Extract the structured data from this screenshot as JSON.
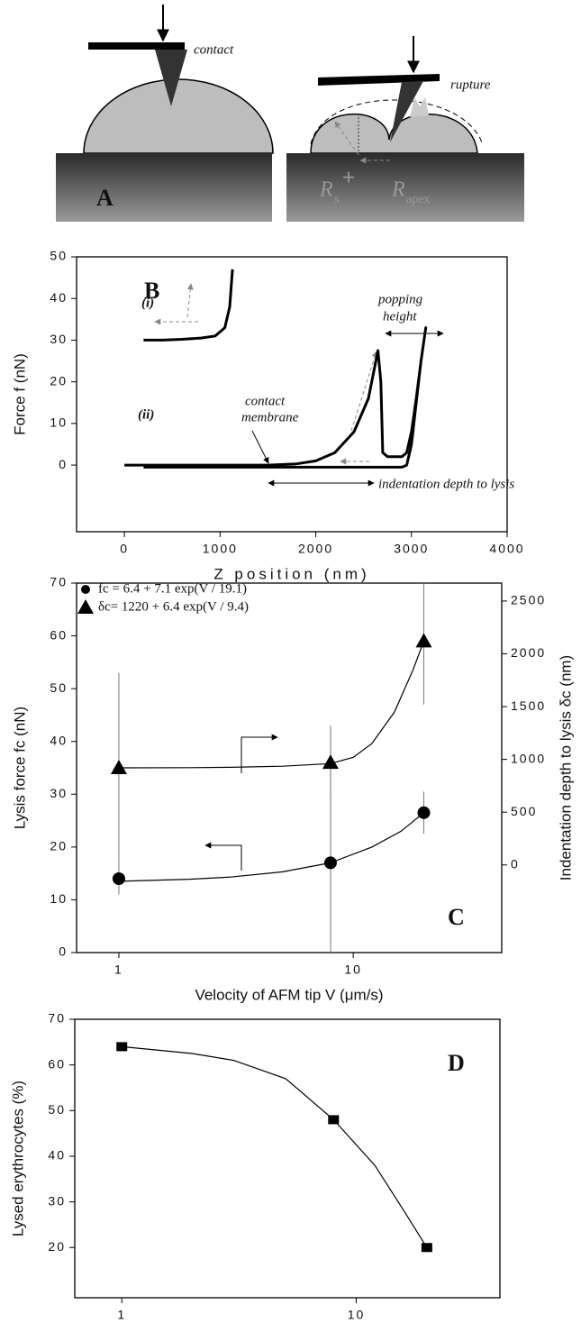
{
  "diagram": {
    "contact": "contact",
    "rupture": "rupture",
    "panel_label": "A",
    "r_s": {
      "symbol": "R",
      "subscript": "s"
    },
    "r_apex": {
      "symbol": "R",
      "subscript": "apex"
    }
  },
  "chart_data": [
    {
      "type": "line",
      "xlabel": "Z position (nm)",
      "ylabel": "Force f (nN)",
      "xlim": [
        -500,
        4000
      ],
      "ylim": [
        -16,
        50
      ],
      "xticks": [
        0,
        1000,
        2000,
        3000,
        4000
      ],
      "yticks": [
        0,
        10,
        20,
        30,
        40,
        50
      ],
      "series": [
        {
          "name": "(i)",
          "color": "#000000",
          "x": [
            200,
            400,
            600,
            800,
            950,
            1050,
            1100,
            1130
          ],
          "values": [
            30,
            30,
            30.2,
            30.5,
            31,
            33,
            38,
            47
          ]
        },
        {
          "name": "(ii)",
          "color": "#000000",
          "x": [
            0,
            500,
            1000,
            1500,
            1800,
            2000,
            2200,
            2400,
            2550,
            2650,
            2680,
            2700,
            2750,
            2900,
            2950,
            3000,
            3050,
            3100,
            3150,
            3100,
            3050,
            3000,
            2950,
            2900,
            2800,
            2500,
            1500,
            200
          ],
          "values": [
            0,
            0,
            0,
            0,
            0.3,
            1,
            3,
            8,
            16,
            27.5,
            20,
            3,
            2,
            2,
            3,
            8,
            16,
            25,
            33,
            25,
            15,
            5,
            0,
            -0.5,
            -0.5,
            -0.5,
            -0.5,
            -0.5
          ]
        }
      ],
      "annotations": [
        "B",
        "popping",
        "height",
        "contact",
        "membrane",
        "indentation depth to lysis"
      ]
    },
    {
      "type": "scatter",
      "log_x": true,
      "xlabel": "Velocity of AFM tip V (μm/s)",
      "ylabel": "Lysis force fc (nN)",
      "y2label": "Indentation depth to lysis δc (nm)",
      "xlim": [
        0.66,
        43
      ],
      "ylim": [
        0,
        70
      ],
      "y2lim": [
        -830,
        2670
      ],
      "xticks": [
        1,
        10
      ],
      "yticks": [
        0,
        10,
        20,
        30,
        40,
        50,
        60,
        70
      ],
      "y2ticks": [
        0,
        500,
        1000,
        1500,
        2000,
        2500
      ],
      "x": [
        1,
        8,
        20
      ],
      "legend": "upper left",
      "series": [
        {
          "name": "fc = 6.4 + 7.1 exp(V / 19.1)",
          "color": "#000000",
          "marker": "circle",
          "values": [
            14,
            17,
            26.5
          ],
          "errors": [
            3,
            17,
            4
          ],
          "fit": {
            "x": [
              1,
              2,
              3,
              5,
              8,
              12,
              16,
              20
            ],
            "values": [
              13.5,
              13.9,
              14.3,
              15.3,
              17,
              20,
              23,
              26.5
            ]
          }
        },
        {
          "name": "δc= 1220 + 6.4 exp(V / 9.4)",
          "color": "#000000",
          "marker": "triangle",
          "axis": "y2",
          "values": [
            920,
            970,
            2120
          ],
          "errors": [
            900,
            350,
            600
          ],
          "fit": {
            "x": [
              1,
              2,
              3,
              5,
              8,
              10,
              12,
              15,
              18,
              20
            ],
            "values": [
              920,
              922,
              925,
              935,
              960,
              1020,
              1150,
              1450,
              1850,
              2120
            ]
          }
        }
      ],
      "annotations": [
        "C"
      ]
    },
    {
      "type": "scatter",
      "log_x": true,
      "xlabel": "Velocity of AFM tip V (μm/s)",
      "ylabel": "Lysed erythrocytes (%)",
      "xlim": [
        0.63,
        41
      ],
      "ylim": [
        9,
        70
      ],
      "xticks": [
        1,
        10
      ],
      "yticks": [
        20,
        30,
        40,
        50,
        60,
        70
      ],
      "x": [
        1,
        8,
        20
      ],
      "series": [
        {
          "name": "Lysed erythrocytes",
          "color": "#000000",
          "marker": "square",
          "values": [
            64,
            48,
            20
          ],
          "fit": {
            "x": [
              1,
              2,
              3,
              5,
              8,
              12,
              16,
              20
            ],
            "values": [
              64,
              62.5,
              61,
              57,
              48,
              38,
              28,
              20
            ]
          }
        }
      ],
      "annotations": [
        "D"
      ]
    }
  ]
}
